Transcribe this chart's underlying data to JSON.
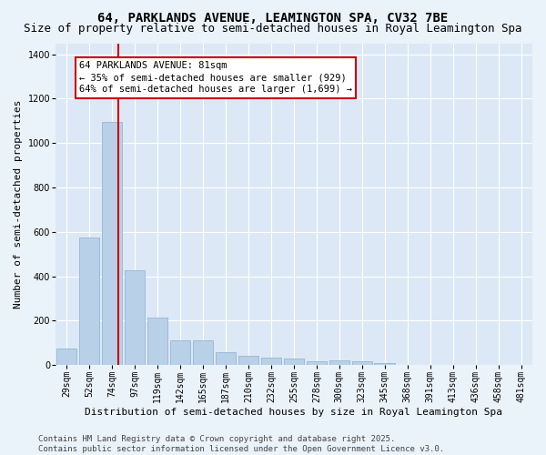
{
  "title": "64, PARKLANDS AVENUE, LEAMINGTON SPA, CV32 7BE",
  "subtitle": "Size of property relative to semi-detached houses in Royal Leamington Spa",
  "xlabel": "Distribution of semi-detached houses by size in Royal Leamington Spa",
  "ylabel": "Number of semi-detached properties",
  "categories": [
    "29sqm",
    "52sqm",
    "74sqm",
    "97sqm",
    "119sqm",
    "142sqm",
    "165sqm",
    "187sqm",
    "210sqm",
    "232sqm",
    "255sqm",
    "278sqm",
    "300sqm",
    "323sqm",
    "345sqm",
    "368sqm",
    "391sqm",
    "413sqm",
    "436sqm",
    "458sqm",
    "481sqm"
  ],
  "values": [
    75,
    575,
    1095,
    425,
    215,
    110,
    110,
    58,
    42,
    35,
    28,
    17,
    20,
    15,
    10,
    0,
    0,
    0,
    0,
    0,
    0
  ],
  "bar_color": "#b8d0e8",
  "bar_edge_color": "#8ab0cc",
  "annotation_text_lines": [
    "64 PARKLANDS AVENUE: 81sqm",
    "← 35% of semi-detached houses are smaller (929)",
    "64% of semi-detached houses are larger (1,699) →"
  ],
  "annotation_box_facecolor": "#ffffff",
  "annotation_box_edgecolor": "#cc0000",
  "red_line_bar_index": 2,
  "ylim": [
    0,
    1450
  ],
  "yticks": [
    0,
    200,
    400,
    600,
    800,
    1000,
    1200,
    1400
  ],
  "plot_bg_color": "#dce8f5",
  "fig_bg_color": "#eaf2fa",
  "footer_text": "Contains HM Land Registry data © Crown copyright and database right 2025.\nContains public sector information licensed under the Open Government Licence v3.0.",
  "title_fontsize": 10,
  "subtitle_fontsize": 9,
  "xlabel_fontsize": 8,
  "ylabel_fontsize": 8,
  "tick_fontsize": 7,
  "footer_fontsize": 6.5,
  "annotation_fontsize": 7.5
}
